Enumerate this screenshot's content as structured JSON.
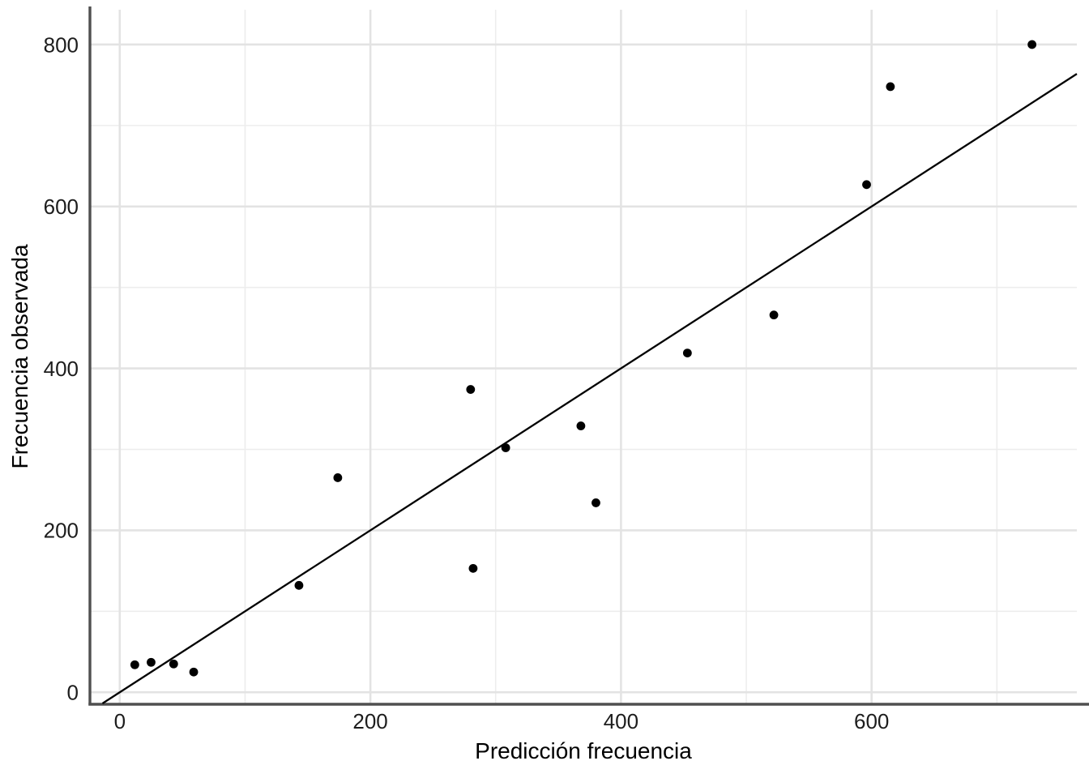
{
  "chart_data": {
    "type": "scatter",
    "title": "",
    "xlabel": "Predicción frecuencia",
    "ylabel": "Frecuencia observada",
    "x_ticks": [
      0,
      200,
      400,
      600
    ],
    "y_ticks": [
      0,
      200,
      400,
      600,
      800
    ],
    "x_minor_gridlines": [
      100,
      300,
      500,
      700
    ],
    "y_minor_gridlines": [
      100,
      300,
      500,
      700
    ],
    "xlim": [
      -23.8,
      763.8
    ],
    "ylim": [
      -13.8,
      843
    ],
    "grid": "on",
    "legend": "none",
    "points": [
      {
        "x": 12,
        "y": 34
      },
      {
        "x": 25,
        "y": 37
      },
      {
        "x": 43,
        "y": 35
      },
      {
        "x": 59,
        "y": 25
      },
      {
        "x": 143,
        "y": 132
      },
      {
        "x": 174,
        "y": 265
      },
      {
        "x": 280,
        "y": 374
      },
      {
        "x": 282,
        "y": 153
      },
      {
        "x": 308,
        "y": 302
      },
      {
        "x": 368,
        "y": 329
      },
      {
        "x": 380,
        "y": 234
      },
      {
        "x": 453,
        "y": 419
      },
      {
        "x": 522,
        "y": 466
      },
      {
        "x": 596,
        "y": 627
      },
      {
        "x": 615,
        "y": 748
      },
      {
        "x": 728,
        "y": 800
      }
    ],
    "reference_line": {
      "slope": 1,
      "intercept": 0
    },
    "colors": {
      "background": "#ffffff",
      "point": "#000000",
      "line": "#000000",
      "grid_major": "#e3e3e3",
      "grid_minor": "#ededed",
      "axis_line": "#4f4f4f",
      "tick_text": "#1d1d1d",
      "title_text": "#000000"
    }
  }
}
